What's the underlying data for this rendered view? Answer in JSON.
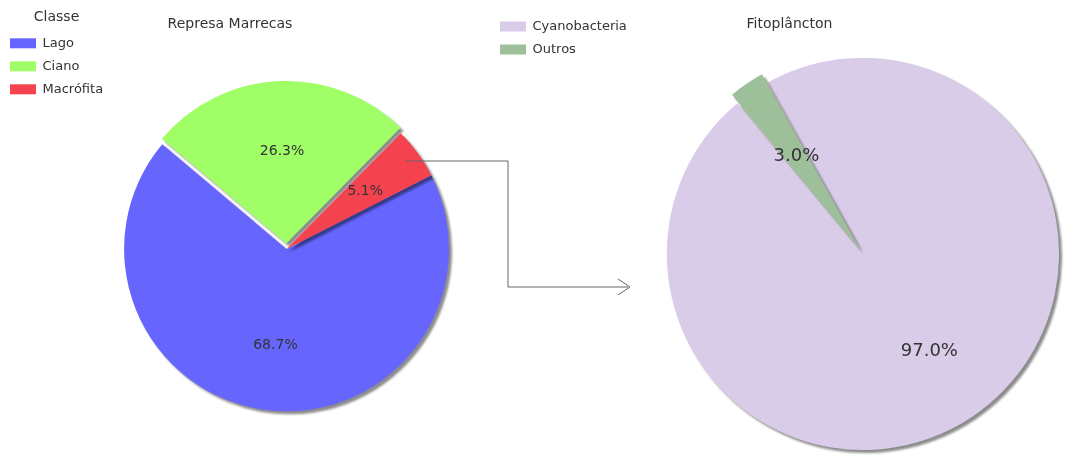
{
  "chart_data": [
    {
      "type": "pie",
      "title": "Represa Marrecas",
      "legend_title": "Classe",
      "categories": [
        "Lago",
        "Ciano",
        "Macrófita"
      ],
      "values": [
        68.7,
        26.3,
        5.1
      ],
      "colors": [
        "#6666ff",
        "#a0ff66",
        "#f4424f"
      ],
      "value_labels": [
        "68.7%",
        "26.3%",
        "5.1%"
      ],
      "legend": "top left"
    },
    {
      "type": "pie",
      "title": "Fitoplâncton",
      "categories": [
        "Cyanobacteria",
        "Outros"
      ],
      "values": [
        97.0,
        3.0
      ],
      "colors": [
        "#d9cce8",
        "#9dbf99"
      ],
      "value_labels": [
        "97.0%",
        "3.0%"
      ],
      "legend": "top left"
    }
  ]
}
